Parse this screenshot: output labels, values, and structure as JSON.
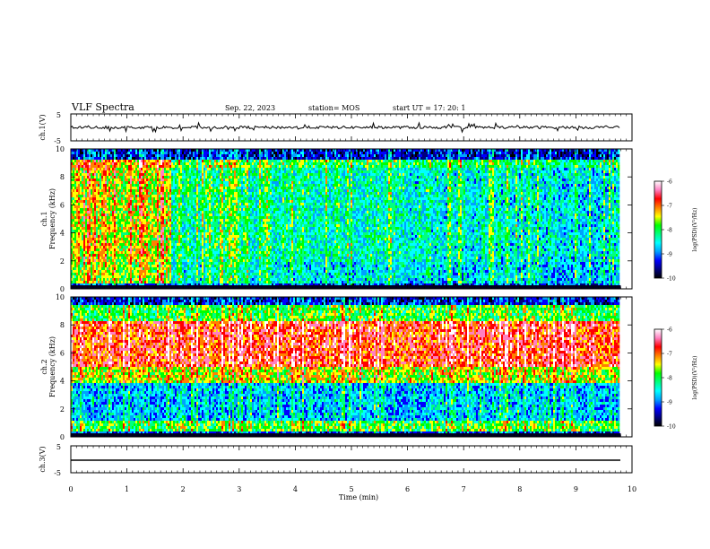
{
  "header": {
    "title": "VLF Spectra",
    "date": "Sep. 22, 2023",
    "station_label": "station= MOS",
    "start_label": "start UT = 17: 20: 1"
  },
  "colors": {
    "colorbar_stops": [
      "#000000",
      "#000080",
      "#0000ff",
      "#00a0ff",
      "#00ffff",
      "#00ff80",
      "#00ff00",
      "#ffff00",
      "#ff8000",
      "#ff0000",
      "#ff80c0",
      "#ffffff"
    ]
  },
  "chart_data": [
    {
      "type": "line",
      "name": "ch1-waveform",
      "ylabel": "ch.1(V)",
      "ylim": [
        -5,
        5
      ],
      "yticks": [
        "5",
        "-5"
      ],
      "xlim": [
        0,
        10
      ],
      "description_value": "low-amplitude waveform near 0 V with sparse spikes"
    },
    {
      "type": "heatmap",
      "name": "ch1-spectrogram",
      "ylabel": "ch.1\nFrequency (kHz)",
      "ylim": [
        0,
        10
      ],
      "yticks": [
        "0",
        "2",
        "4",
        "6",
        "8",
        "10"
      ],
      "xlim": [
        0,
        10
      ],
      "data_end_min": 9.8,
      "colorbar": {
        "label": "log(PSD)(V²/Hz)",
        "range": [
          -10,
          -6
        ],
        "ticks": [
          "-6",
          "-7",
          "-8",
          "-9",
          "-10"
        ]
      }
    },
    {
      "type": "heatmap",
      "name": "ch2-spectrogram",
      "ylabel": "ch.2\nFrequency (kHz)",
      "ylim": [
        0,
        10
      ],
      "yticks": [
        "0",
        "2",
        "4",
        "6",
        "8",
        "10"
      ],
      "xlim": [
        0,
        10
      ],
      "data_end_min": 9.8,
      "colorbar": {
        "label": "log(PSD)(V²/Hz)",
        "range": [
          -10,
          -6
        ],
        "ticks": [
          "-6",
          "-7",
          "-8",
          "-9",
          "-10"
        ]
      }
    },
    {
      "type": "line",
      "name": "ch3-waveform",
      "ylabel": "ch.3(V)",
      "ylim": [
        -5,
        5
      ],
      "yticks": [
        "5",
        "-5"
      ],
      "xlim": [
        0,
        10
      ],
      "x": [
        0,
        9.8
      ],
      "values": [
        0,
        0
      ]
    }
  ],
  "x_axis": {
    "label": "Time (min)",
    "ticks": [
      "0",
      "1",
      "2",
      "3",
      "4",
      "5",
      "6",
      "7",
      "8",
      "9",
      "10"
    ]
  }
}
